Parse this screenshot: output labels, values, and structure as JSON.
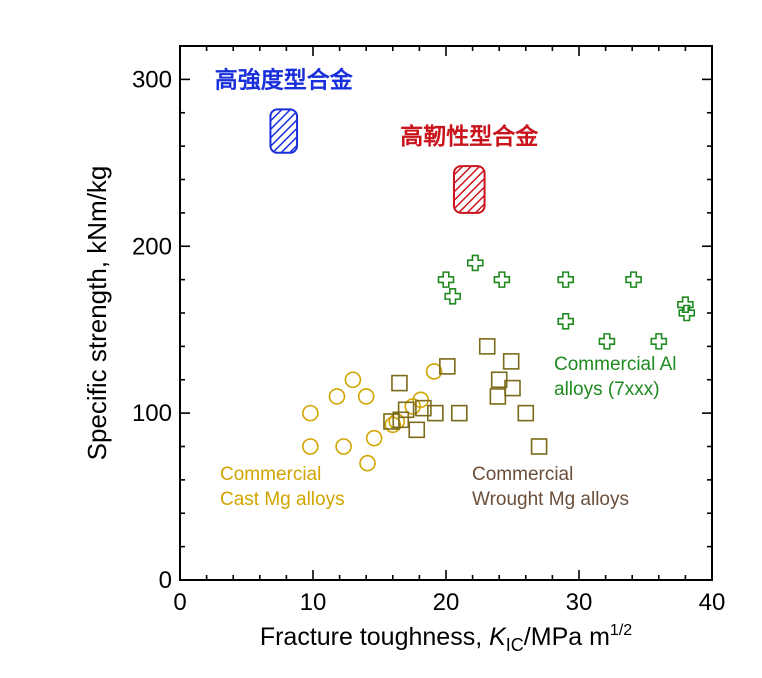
{
  "chart_data": {
    "type": "scatter",
    "xlabel": {
      "prefix": "Fracture toughness, ",
      "symbol": "K",
      "subscript": "IC",
      "suffix": "/MPa m",
      "superscript": "1/2"
    },
    "ylabel": "Specific strength, kNm/kg",
    "xlim": [
      0,
      40
    ],
    "ylim": [
      0,
      320
    ],
    "xticks": [
      0,
      10,
      20,
      30,
      40
    ],
    "yticks": [
      0,
      100,
      200,
      300
    ],
    "grid": false,
    "colors": {
      "cast_mg": "#d1a400",
      "wrought_mg": "#7a6a1a",
      "al": "#1f8a1f",
      "high_strength": "#1a2fdc",
      "high_toughness": "#c9141c",
      "axis": "#000000"
    },
    "series": [
      {
        "key": "cast_mg",
        "marker": "circle",
        "label_lines": [
          "Commercial",
          "Cast Mg alloys"
        ],
        "points": [
          {
            "x": 9.8,
            "y": 100
          },
          {
            "x": 9.8,
            "y": 80
          },
          {
            "x": 11.8,
            "y": 110
          },
          {
            "x": 12.3,
            "y": 80
          },
          {
            "x": 13.0,
            "y": 120
          },
          {
            "x": 14.0,
            "y": 110
          },
          {
            "x": 14.1,
            "y": 70
          },
          {
            "x": 14.6,
            "y": 85
          },
          {
            "x": 16.0,
            "y": 93
          },
          {
            "x": 16.3,
            "y": 95
          },
          {
            "x": 17.5,
            "y": 104
          },
          {
            "x": 18.1,
            "y": 108
          },
          {
            "x": 19.1,
            "y": 125
          }
        ]
      },
      {
        "key": "wrought_mg",
        "marker": "square",
        "label_lines": [
          "Commercial",
          "Wrought Mg alloys"
        ],
        "points": [
          {
            "x": 15.9,
            "y": 95
          },
          {
            "x": 16.5,
            "y": 118
          },
          {
            "x": 16.6,
            "y": 96
          },
          {
            "x": 17.0,
            "y": 102
          },
          {
            "x": 17.8,
            "y": 90
          },
          {
            "x": 18.3,
            "y": 103
          },
          {
            "x": 19.2,
            "y": 100
          },
          {
            "x": 20.1,
            "y": 128
          },
          {
            "x": 21.0,
            "y": 100
          },
          {
            "x": 23.1,
            "y": 140
          },
          {
            "x": 23.9,
            "y": 110
          },
          {
            "x": 24.0,
            "y": 120
          },
          {
            "x": 24.9,
            "y": 131
          },
          {
            "x": 25.0,
            "y": 115
          },
          {
            "x": 26.0,
            "y": 100
          },
          {
            "x": 27.0,
            "y": 80
          }
        ]
      },
      {
        "key": "al",
        "marker": "plus",
        "label_lines": [
          "Commercial Al",
          "alloys (7xxx)"
        ],
        "points": [
          {
            "x": 20.0,
            "y": 180
          },
          {
            "x": 20.5,
            "y": 170
          },
          {
            "x": 22.2,
            "y": 190
          },
          {
            "x": 24.2,
            "y": 180
          },
          {
            "x": 29.0,
            "y": 180
          },
          {
            "x": 29.0,
            "y": 155
          },
          {
            "x": 32.1,
            "y": 143
          },
          {
            "x": 34.1,
            "y": 180
          },
          {
            "x": 36.0,
            "y": 143
          },
          {
            "x": 38.0,
            "y": 165
          },
          {
            "x": 38.1,
            "y": 160
          }
        ]
      }
    ],
    "regions": [
      {
        "key": "high_strength",
        "label": "高強度型合金",
        "x_range": [
          6.8,
          8.8
        ],
        "y_range": [
          256,
          282
        ]
      },
      {
        "key": "high_toughness",
        "label": "高靭性型合金",
        "x_range": [
          20.6,
          22.9
        ],
        "y_range": [
          220,
          248
        ]
      }
    ]
  }
}
